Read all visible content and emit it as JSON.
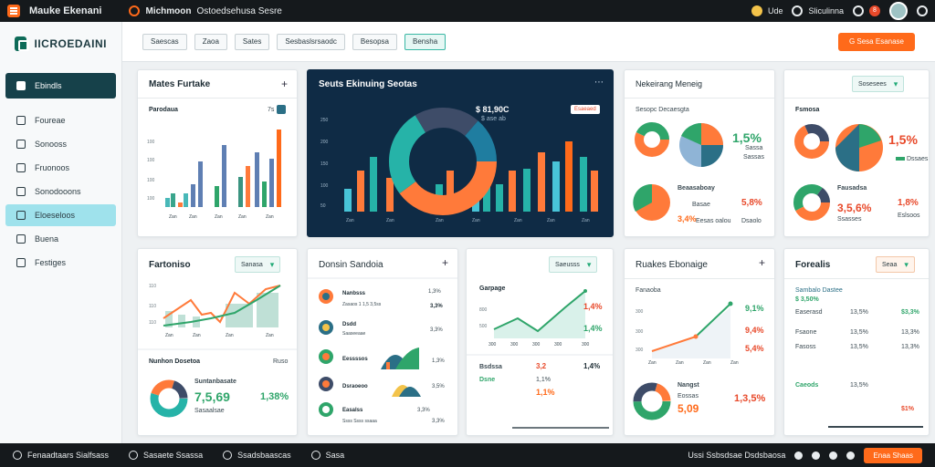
{
  "topbar": {
    "title": "Mauke Ekenani",
    "tab_bold": "Michmoon",
    "tab_rest": "Ostoedsehusa Sesre",
    "right1": "Ude",
    "right2": "Sliculinna",
    "notif": "8"
  },
  "sidebar": {
    "brand": "IICROEDAINI",
    "items": [
      "Ebindls",
      "Foureae",
      "Sonooss",
      "Fruonoos",
      "Sonodooons",
      "Eloeseloos",
      "Buena",
      "Festiges"
    ]
  },
  "toolbar": {
    "chips": [
      "Saescas",
      "Zaoa",
      "Sates",
      "Sesbaslsrsaodc",
      "Besopsa",
      "Bensha"
    ],
    "cta": "G Sesa Esanase"
  },
  "cards": {
    "c1": {
      "title": "Mates Furtake",
      "sub": "Parodaua",
      "sel": "7s"
    },
    "c2": {
      "title": "Seuts Ekinuing  Seotas",
      "value": "$ 81,90C",
      "sub": "$ ase ab",
      "badge": "Esaeaed"
    },
    "c3": {
      "title": "Nekeirang Meneig",
      "sub": "Sesopc Decaesgta",
      "pct1": "1,5%",
      "sub1": "Sassa",
      "sub2": "Sassas",
      "label2": "Beaasaboay",
      "pct2": "5,8%",
      "sub3": "Basae",
      "sm": "3,4%",
      "sub4": "Eesas oalou",
      "sub5": "Dsaolo"
    },
    "c4": {
      "sel": "Sosesees",
      "title": "Fsmosa",
      "pct1": "1,5%",
      "sub1": "Dssaes",
      "label2": "Fausadsa",
      "val2": "3,5,6%",
      "sm": "Ssasses",
      "pct2": "1,8%",
      "sub2": "Eslsoos"
    },
    "c5": {
      "title": "Fartoniso",
      "sel": "Sanasa",
      "sub": "Nunhon Dosetoa",
      "sub2": "Ruso",
      "label": "Suntanbasate",
      "val": "7,5,69",
      "pct": "1,38%",
      "trend": "Sasaalsae"
    },
    "c6": {
      "title": "Donsin Sandoia"
    },
    "c7": {
      "title": "Garpage",
      "sel": "Saeusss",
      "pcts": [
        "1,4%",
        "1,4%"
      ],
      "row1": "Bsdssa",
      "row2": "Dsne",
      "v1": "3,2",
      "v2": "1,1%",
      "v3": "1,1%",
      "v4": "1,4%"
    },
    "c8": {
      "title": "Ruakes Ebonaige",
      "sub": "Fanaoba",
      "pcts": [
        "9,1%",
        "9,4%",
        "5,4%"
      ],
      "label": "Nangst",
      "sub2": "Eossas",
      "big": "5,09",
      "pct": "1,3,5%"
    },
    "c9": {
      "title": "Forealis",
      "sel": "Seaa",
      "header": "Sambalo Dastee",
      "header2": "$ 3,50%",
      "rows": [
        "Easerasd",
        "Fsaone",
        "Fasoss",
        "Caeods"
      ],
      "vals": [
        "13,5%",
        "13,5%",
        "13,5%",
        "13,5%"
      ],
      "pcts": [
        "$3,3%",
        "13,3%",
        "13,3%",
        "$1%"
      ]
    }
  },
  "bottombar": {
    "items": [
      "Fenaadtaars Sialfsass",
      "Sasaete Ssassa",
      "Ssadsbaascas",
      "Sasa"
    ],
    "right": "Ussi Ssbsdsae Dsdsbaosa",
    "btn": "Enaa Shaas"
  }
}
